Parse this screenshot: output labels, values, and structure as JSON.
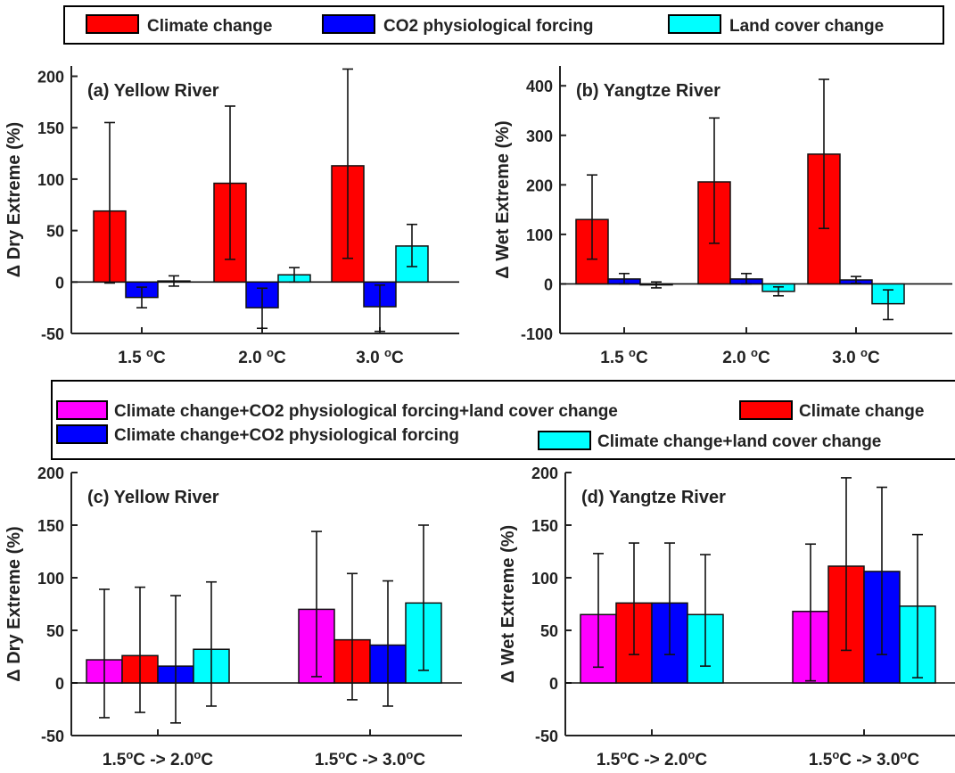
{
  "legend_top": [
    {
      "label": "Climate change",
      "color": "#ff0000"
    },
    {
      "label": "CO2 physiological forcing",
      "color": "#0000ff"
    },
    {
      "label": "Land cover change",
      "color": "#00ffff"
    }
  ],
  "legend_bottom": [
    {
      "label": "Climate change+CO2 physiological forcing+land cover change",
      "color": "#ff00ff"
    },
    {
      "label": "Climate change",
      "color": "#ff0000"
    },
    {
      "label": "Climate change+CO2 physiological forcing",
      "color": "#0000ff"
    },
    {
      "label": "Climate change+land cover change",
      "color": "#00ffff"
    }
  ],
  "chart_data": [
    {
      "type": "bar",
      "title": "(a) Yellow River",
      "ylabel": "Δ Dry Extreme (%)",
      "ylim": [
        -50,
        210
      ],
      "yticks": [
        -50,
        0,
        50,
        100,
        150,
        200
      ],
      "categories": [
        "1.5 °C",
        "2.0 °C",
        "3.0 °C"
      ],
      "series": [
        {
          "name": "Climate change",
          "color": "#ff0000",
          "values": [
            69,
            96,
            113
          ],
          "err_low": [
            -1,
            22,
            23
          ],
          "err_high": [
            155,
            171,
            207
          ]
        },
        {
          "name": "CO2 physiological forcing",
          "color": "#0000ff",
          "values": [
            -15,
            -25,
            -24
          ],
          "err_low": [
            -25,
            -45,
            -48
          ],
          "err_high": [
            -5,
            -6,
            -3
          ]
        },
        {
          "name": "Land cover change",
          "color": "#00ffff",
          "values": [
            1,
            7,
            35
          ],
          "err_low": [
            -4,
            0,
            15
          ],
          "err_high": [
            6,
            14,
            56
          ]
        }
      ]
    },
    {
      "type": "bar",
      "title": "(b) Yangtze River",
      "ylabel": "Δ Wet Extreme (%)",
      "ylim": [
        -100,
        440
      ],
      "yticks": [
        -100,
        0,
        100,
        200,
        300,
        400
      ],
      "categories": [
        "1.5 °C",
        "2.0 °C",
        "3.0 °C"
      ],
      "series": [
        {
          "name": "Climate change",
          "color": "#ff0000",
          "values": [
            130,
            206,
            262
          ],
          "err_low": [
            50,
            82,
            112
          ],
          "err_high": [
            220,
            335,
            413
          ]
        },
        {
          "name": "CO2 physiological forcing",
          "color": "#0000ff",
          "values": [
            10,
            10,
            8
          ],
          "err_low": [
            0,
            0,
            1
          ],
          "err_high": [
            21,
            21,
            15
          ]
        },
        {
          "name": "Land cover change",
          "color": "#00ffff",
          "values": [
            -2,
            -15,
            -40
          ],
          "err_low": [
            -8,
            -24,
            -72
          ],
          "err_high": [
            4,
            -6,
            -12
          ]
        }
      ]
    },
    {
      "type": "bar",
      "title": "(c) Yellow River",
      "ylabel": "Δ Dry Extreme (%)",
      "ylim": [
        -50,
        200
      ],
      "yticks": [
        -50,
        0,
        50,
        100,
        150,
        200
      ],
      "categories": [
        "1.5°C -> 2.0°C",
        "1.5°C -> 3.0°C"
      ],
      "series": [
        {
          "name": "Climate change+CO2 physiological forcing+land cover change",
          "color": "#ff00ff",
          "values": [
            22,
            70
          ],
          "err_low": [
            -33,
            6
          ],
          "err_high": [
            89,
            144
          ]
        },
        {
          "name": "Climate change",
          "color": "#ff0000",
          "values": [
            26,
            41
          ],
          "err_low": [
            -28,
            -16
          ],
          "err_high": [
            91,
            104
          ]
        },
        {
          "name": "Climate change+CO2 physiological forcing",
          "color": "#0000ff",
          "values": [
            16,
            36
          ],
          "err_low": [
            -38,
            -22
          ],
          "err_high": [
            83,
            97
          ]
        },
        {
          "name": "Climate change+land cover change",
          "color": "#00ffff",
          "values": [
            32,
            76
          ],
          "err_low": [
            -22,
            12
          ],
          "err_high": [
            96,
            150
          ]
        }
      ]
    },
    {
      "type": "bar",
      "title": "(d) Yangtze River",
      "ylabel": "Δ Wet Extreme (%)",
      "ylim": [
        -50,
        200
      ],
      "yticks": [
        -50,
        0,
        50,
        100,
        150,
        200
      ],
      "categories": [
        "1.5°C -> 2.0°C",
        "1.5°C -> 3.0°C"
      ],
      "series": [
        {
          "name": "Climate change+CO2 physiological forcing+land cover change",
          "color": "#ff00ff",
          "values": [
            65,
            68
          ],
          "err_low": [
            15,
            2
          ],
          "err_high": [
            123,
            132
          ]
        },
        {
          "name": "Climate change",
          "color": "#ff0000",
          "values": [
            76,
            111
          ],
          "err_low": [
            27,
            31
          ],
          "err_high": [
            133,
            195
          ]
        },
        {
          "name": "Climate change+CO2 physiological forcing",
          "color": "#0000ff",
          "values": [
            76,
            106
          ],
          "err_low": [
            27,
            27
          ],
          "err_high": [
            133,
            186
          ]
        },
        {
          "name": "Climate change+land cover change",
          "color": "#00ffff",
          "values": [
            65,
            73
          ],
          "err_low": [
            16,
            5
          ],
          "err_high": [
            122,
            141
          ]
        }
      ]
    }
  ]
}
